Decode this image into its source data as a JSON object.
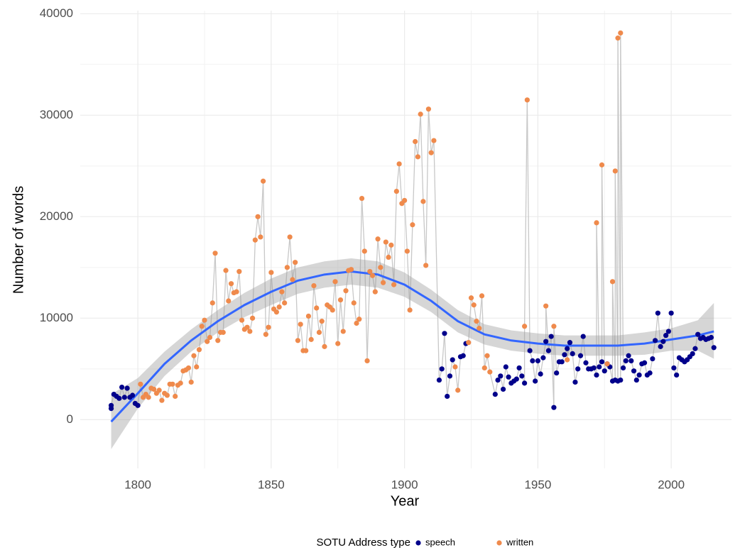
{
  "chart_data": {
    "type": "scatter",
    "x_label": "Year",
    "y_label": "Number of words",
    "legend_title": "SOTU Address type",
    "legend_position": "bottom",
    "grid": true,
    "xlim": [
      1778.4,
      2022.6
    ],
    "ylim": [
      -4800,
      40300
    ],
    "xticks": [
      1800,
      1850,
      1900,
      1950,
      2000
    ],
    "yticks": [
      0,
      10000,
      20000,
      30000,
      40000
    ],
    "connect_color": "#c8c8c8",
    "series": [
      {
        "name": "speech",
        "color": "#00008b",
        "x": [
          1790,
          1790,
          1791,
          1792,
          1793,
          1794,
          1795,
          1796,
          1797,
          1798,
          1799,
          1800,
          1913,
          1914,
          1915,
          1916,
          1917,
          1918,
          1921,
          1922,
          1923,
          1934,
          1935,
          1936,
          1937,
          1938,
          1939,
          1940,
          1941,
          1942,
          1943,
          1944,
          1945,
          1947,
          1948,
          1949,
          1950,
          1951,
          1952,
          1953,
          1954,
          1955,
          1956,
          1957,
          1958,
          1959,
          1960,
          1961,
          1962,
          1963,
          1964,
          1965,
          1966,
          1967,
          1968,
          1969,
          1970,
          1971,
          1972,
          1973,
          1974,
          1975,
          1976,
          1977,
          1978,
          1979,
          1980,
          1981,
          1982,
          1983,
          1984,
          1985,
          1986,
          1987,
          1988,
          1989,
          1990,
          1991,
          1992,
          1993,
          1994,
          1995,
          1996,
          1997,
          1998,
          1999,
          2000,
          2001,
          2002,
          2003,
          2004,
          2005,
          2006,
          2007,
          2008,
          2009,
          2010,
          2011,
          2012,
          2013,
          2014,
          2015,
          2016
        ],
        "values": [
          1100,
          1400,
          2500,
          2300,
          2100,
          3200,
          2200,
          3100,
          2200,
          2400,
          1600,
          1400,
          3900,
          5000,
          8500,
          2300,
          4300,
          5900,
          6200,
          6300,
          7500,
          2500,
          3900,
          4300,
          3000,
          5200,
          4200,
          3600,
          3800,
          4000,
          5100,
          4300,
          3600,
          6800,
          5800,
          3800,
          5800,
          4500,
          6100,
          7700,
          6800,
          8200,
          1200,
          4600,
          5700,
          5700,
          6400,
          7000,
          7600,
          6500,
          3700,
          5000,
          6300,
          8200,
          5600,
          5000,
          5000,
          5100,
          4400,
          5200,
          5700,
          4800,
          5500,
          5200,
          3800,
          3900,
          3800,
          3900,
          5100,
          5800,
          6300,
          5800,
          4800,
          3900,
          4400,
          5500,
          5600,
          4400,
          4600,
          6000,
          7800,
          10500,
          7200,
          7700,
          8300,
          8700,
          10500,
          5100,
          4400,
          6100,
          5900,
          5700,
          5900,
          6200,
          6500,
          7000,
          8400,
          8000,
          8100,
          7900,
          8000,
          8100,
          7100
        ]
      },
      {
        "name": "written",
        "color": "#ef8a4c",
        "x": [
          1801,
          1802,
          1803,
          1804,
          1805,
          1806,
          1807,
          1808,
          1809,
          1810,
          1811,
          1812,
          1813,
          1814,
          1815,
          1816,
          1817,
          1818,
          1819,
          1820,
          1821,
          1822,
          1823,
          1824,
          1825,
          1826,
          1827,
          1828,
          1829,
          1830,
          1831,
          1832,
          1833,
          1834,
          1835,
          1836,
          1837,
          1838,
          1839,
          1840,
          1841,
          1842,
          1843,
          1844,
          1845,
          1846,
          1847,
          1848,
          1849,
          1850,
          1851,
          1852,
          1853,
          1854,
          1855,
          1856,
          1857,
          1858,
          1859,
          1860,
          1861,
          1862,
          1863,
          1864,
          1865,
          1866,
          1867,
          1868,
          1869,
          1870,
          1871,
          1872,
          1873,
          1874,
          1875,
          1876,
          1877,
          1878,
          1879,
          1880,
          1881,
          1882,
          1883,
          1884,
          1885,
          1886,
          1887,
          1888,
          1889,
          1890,
          1891,
          1892,
          1893,
          1894,
          1895,
          1896,
          1897,
          1898,
          1899,
          1900,
          1901,
          1902,
          1903,
          1904,
          1905,
          1906,
          1907,
          1908,
          1909,
          1910,
          1911,
          1919,
          1920,
          1924,
          1925,
          1926,
          1927,
          1928,
          1929,
          1930,
          1931,
          1932,
          1945,
          1946,
          1953,
          1956,
          1961,
          1972,
          1974,
          1976,
          1978,
          1979,
          1980,
          1981
        ],
        "values": [
          3500,
          2200,
          2500,
          2200,
          3100,
          3000,
          2600,
          2900,
          1900,
          2600,
          2400,
          3500,
          3500,
          2300,
          3400,
          3600,
          4800,
          4900,
          5100,
          3700,
          6300,
          5200,
          6900,
          9200,
          9800,
          7700,
          8100,
          11500,
          16400,
          7800,
          8600,
          8600,
          14700,
          11700,
          13400,
          12500,
          12600,
          14600,
          9800,
          8900,
          9100,
          8700,
          10000,
          17700,
          20000,
          18000,
          23500,
          8400,
          9100,
          14500,
          10900,
          10600,
          11100,
          12600,
          11500,
          15000,
          18000,
          13800,
          15500,
          7800,
          9400,
          6800,
          6800,
          10200,
          7900,
          13200,
          11000,
          8600,
          9700,
          7200,
          11300,
          11100,
          10800,
          13600,
          7500,
          11800,
          8700,
          12700,
          14700,
          14800,
          11500,
          9500,
          9900,
          21800,
          16600,
          5800,
          14600,
          14200,
          12600,
          17800,
          15000,
          13500,
          17500,
          16000,
          17200,
          13300,
          22500,
          25200,
          21300,
          21600,
          16600,
          10800,
          19200,
          27400,
          25900,
          30100,
          21500,
          15200,
          30600,
          26300,
          27500,
          5200,
          2900,
          7600,
          12000,
          11300,
          9700,
          9000,
          12200,
          5100,
          6300,
          4700,
          9200,
          31500,
          11200,
          9200,
          5900,
          19400,
          25100,
          5500,
          13600,
          24500,
          37600,
          38100
        ]
      }
    ],
    "smooth": {
      "color": "#3366ff",
      "band_color": "#999999",
      "x": [
        1790,
        1800,
        1810,
        1820,
        1830,
        1840,
        1850,
        1860,
        1870,
        1880,
        1890,
        1900,
        1910,
        1920,
        1930,
        1940,
        1950,
        1960,
        1970,
        1980,
        1990,
        2000,
        2010,
        2016
      ],
      "values": [
        -200,
        2600,
        5500,
        7800,
        9700,
        11300,
        12600,
        13700,
        14300,
        14600,
        14300,
        13300,
        11700,
        9700,
        8400,
        7800,
        7500,
        7300,
        7300,
        7300,
        7500,
        7900,
        8300,
        8700
      ],
      "upper": [
        2500,
        4100,
        6700,
        8900,
        10800,
        12500,
        13900,
        15000,
        15600,
        15900,
        15600,
        14500,
        12800,
        10800,
        9400,
        8800,
        8500,
        8300,
        8300,
        8300,
        8600,
        9000,
        9800,
        11500
      ],
      "lower": [
        -2900,
        1100,
        4300,
        6700,
        8600,
        10100,
        11300,
        12400,
        13000,
        13300,
        13000,
        12100,
        10600,
        8600,
        7400,
        6800,
        6500,
        6300,
        6300,
        6300,
        6400,
        6800,
        6800,
        6000
      ]
    }
  }
}
